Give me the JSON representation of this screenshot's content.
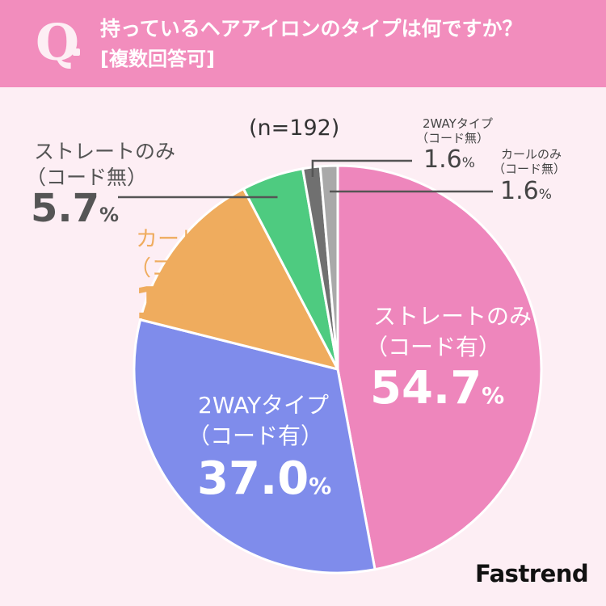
{
  "question": {
    "mark": "Q",
    "text": "持っているヘアアイロンのタイプは何ですか？",
    "note": "[複数回答可]"
  },
  "sample_size": "(n=192)",
  "brand": "Fastrend",
  "colors": {
    "header_bg": "#f28dbd",
    "page_bg": "#fdeef4",
    "straight_corded": "#ee86bc",
    "twoway_corded": "#7f8ceb",
    "curl_corded": "#efac5e",
    "straight_cordless": "#4ecb80",
    "twoway_cordless": "#707070",
    "curl_cordless": "#a9a9a9",
    "leader_line": "#555555"
  },
  "chart_data": {
    "type": "pie",
    "title": "持っているヘアアイロンのタイプは何ですか？",
    "subtitle": "[複数回答可]",
    "n": 192,
    "unit": "%",
    "slices": [
      {
        "label": "ストレートのみ（コード有）",
        "line1": "ストレートのみ",
        "line2": "（コード有）",
        "value": 54.7,
        "value_text": "54.7",
        "color": "#ee86bc"
      },
      {
        "label": "2WAYタイプ（コード有）",
        "line1": "2WAYタイプ",
        "line2": "（コード有）",
        "value": 37.0,
        "value_text": "37.0",
        "color": "#7f8ceb"
      },
      {
        "label": "カールのみ（コード有）",
        "line1": "カールのみ",
        "line2": "（コード有）",
        "value": 15.6,
        "value_text": "15.6",
        "color": "#efac5e"
      },
      {
        "label": "ストレートのみ（コード無）",
        "line1": "ストレートのみ",
        "line2": "（コード無）",
        "value": 5.7,
        "value_text": "5.7",
        "color": "#4ecb80"
      },
      {
        "label": "2WAYタイプ（コード無）",
        "line1": "2WAYタイプ",
        "line2": "（コード無）",
        "value": 1.6,
        "value_text": "1.6",
        "color": "#707070"
      },
      {
        "label": "カールのみ（コード無）",
        "line1": "カールのみ",
        "line2": "（コード無）",
        "value": 1.6,
        "value_text": "1.6",
        "color": "#a9a9a9"
      }
    ]
  }
}
